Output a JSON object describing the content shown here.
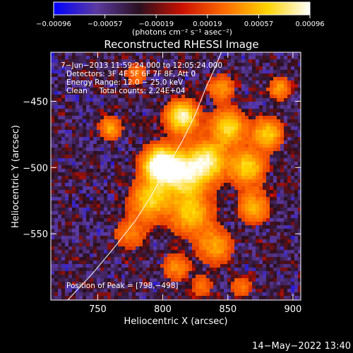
{
  "chart_data": {
    "type": "heatmap",
    "title": "Reconstructed RHESSI Image",
    "xlabel": "Heliocentric X (arcsec)",
    "ylabel": "Heliocentric Y (arcsec)",
    "xlim": [
      714,
      906
    ],
    "ylim": [
      -600,
      -413
    ],
    "x_ticks": [
      750,
      800,
      850,
      900
    ],
    "y_ticks": [
      -450,
      -500,
      -550
    ],
    "colorbar": {
      "label": "(photons cm⁻² s⁻¹ asec⁻²)",
      "range": [
        -0.00096,
        0.00096
      ],
      "tick_labels": [
        "−0.00096",
        "−0.00057",
        "−0.00019",
        "0.00019",
        "0.00057",
        "0.00096"
      ],
      "colormap": "blue-purple-black-red-orange-yellow-white",
      "stops": [
        "#0000ff",
        "#5b3aa0",
        "#2a1020",
        "#c81000",
        "#ff6a00",
        "#ffd400",
        "#ffffff"
      ]
    },
    "annotations": [
      "7−Jun−2013 11:59:24.000 to 12:05:24.000",
      "Detectors: 3F 4F 5F 6F 7F 8F, Att 0",
      "Energy Range: 12.0 − 25.0 keV",
      "Clean     Total counts: 2.24E+04"
    ],
    "peak_label": "Position of Peak = [798,−498]",
    "peak": [
      798,
      -498
    ],
    "limb_arc": [
      [
        727,
        -600
      ],
      [
        746,
        -580
      ],
      [
        763,
        -560
      ],
      [
        779,
        -540
      ],
      [
        792,
        -520
      ],
      [
        803,
        -500
      ],
      [
        815,
        -480
      ],
      [
        825,
        -460
      ],
      [
        833,
        -440
      ],
      [
        840,
        -425
      ],
      [
        845,
        -413
      ]
    ],
    "sources": [
      {
        "x": 798,
        "y": -498,
        "sigma": 9,
        "amp": 1.0
      },
      {
        "x": 815,
        "y": -505,
        "sigma": 12,
        "amp": 0.78
      },
      {
        "x": 815,
        "y": -462,
        "sigma": 8,
        "amp": 0.85
      },
      {
        "x": 835,
        "y": -495,
        "sigma": 10,
        "amp": 0.7
      },
      {
        "x": 850,
        "y": -470,
        "sigma": 9,
        "amp": 0.65
      },
      {
        "x": 865,
        "y": -500,
        "sigma": 9,
        "amp": 0.62
      },
      {
        "x": 880,
        "y": -475,
        "sigma": 8,
        "amp": 0.58
      },
      {
        "x": 790,
        "y": -525,
        "sigma": 10,
        "amp": 0.6
      },
      {
        "x": 822,
        "y": -535,
        "sigma": 11,
        "amp": 0.55
      },
      {
        "x": 840,
        "y": -560,
        "sigma": 9,
        "amp": 0.45
      },
      {
        "x": 870,
        "y": -530,
        "sigma": 8,
        "amp": 0.48
      },
      {
        "x": 810,
        "y": -575,
        "sigma": 7,
        "amp": 0.38
      },
      {
        "x": 775,
        "y": -550,
        "sigma": 8,
        "amp": 0.35
      },
      {
        "x": 760,
        "y": -470,
        "sigma": 6,
        "amp": 0.45
      },
      {
        "x": 890,
        "y": -440,
        "sigma": 6,
        "amp": 0.4
      },
      {
        "x": 845,
        "y": -440,
        "sigma": 7,
        "amp": 0.38
      },
      {
        "x": 780,
        "y": -430,
        "sigma": 6,
        "amp": 0.3
      },
      {
        "x": 830,
        "y": -590,
        "sigma": 6,
        "amp": 0.28
      },
      {
        "x": 860,
        "y": -590,
        "sigma": 6,
        "amp": 0.28
      }
    ]
  },
  "footer": {
    "timestamp": "14−May−2022 13:40"
  }
}
